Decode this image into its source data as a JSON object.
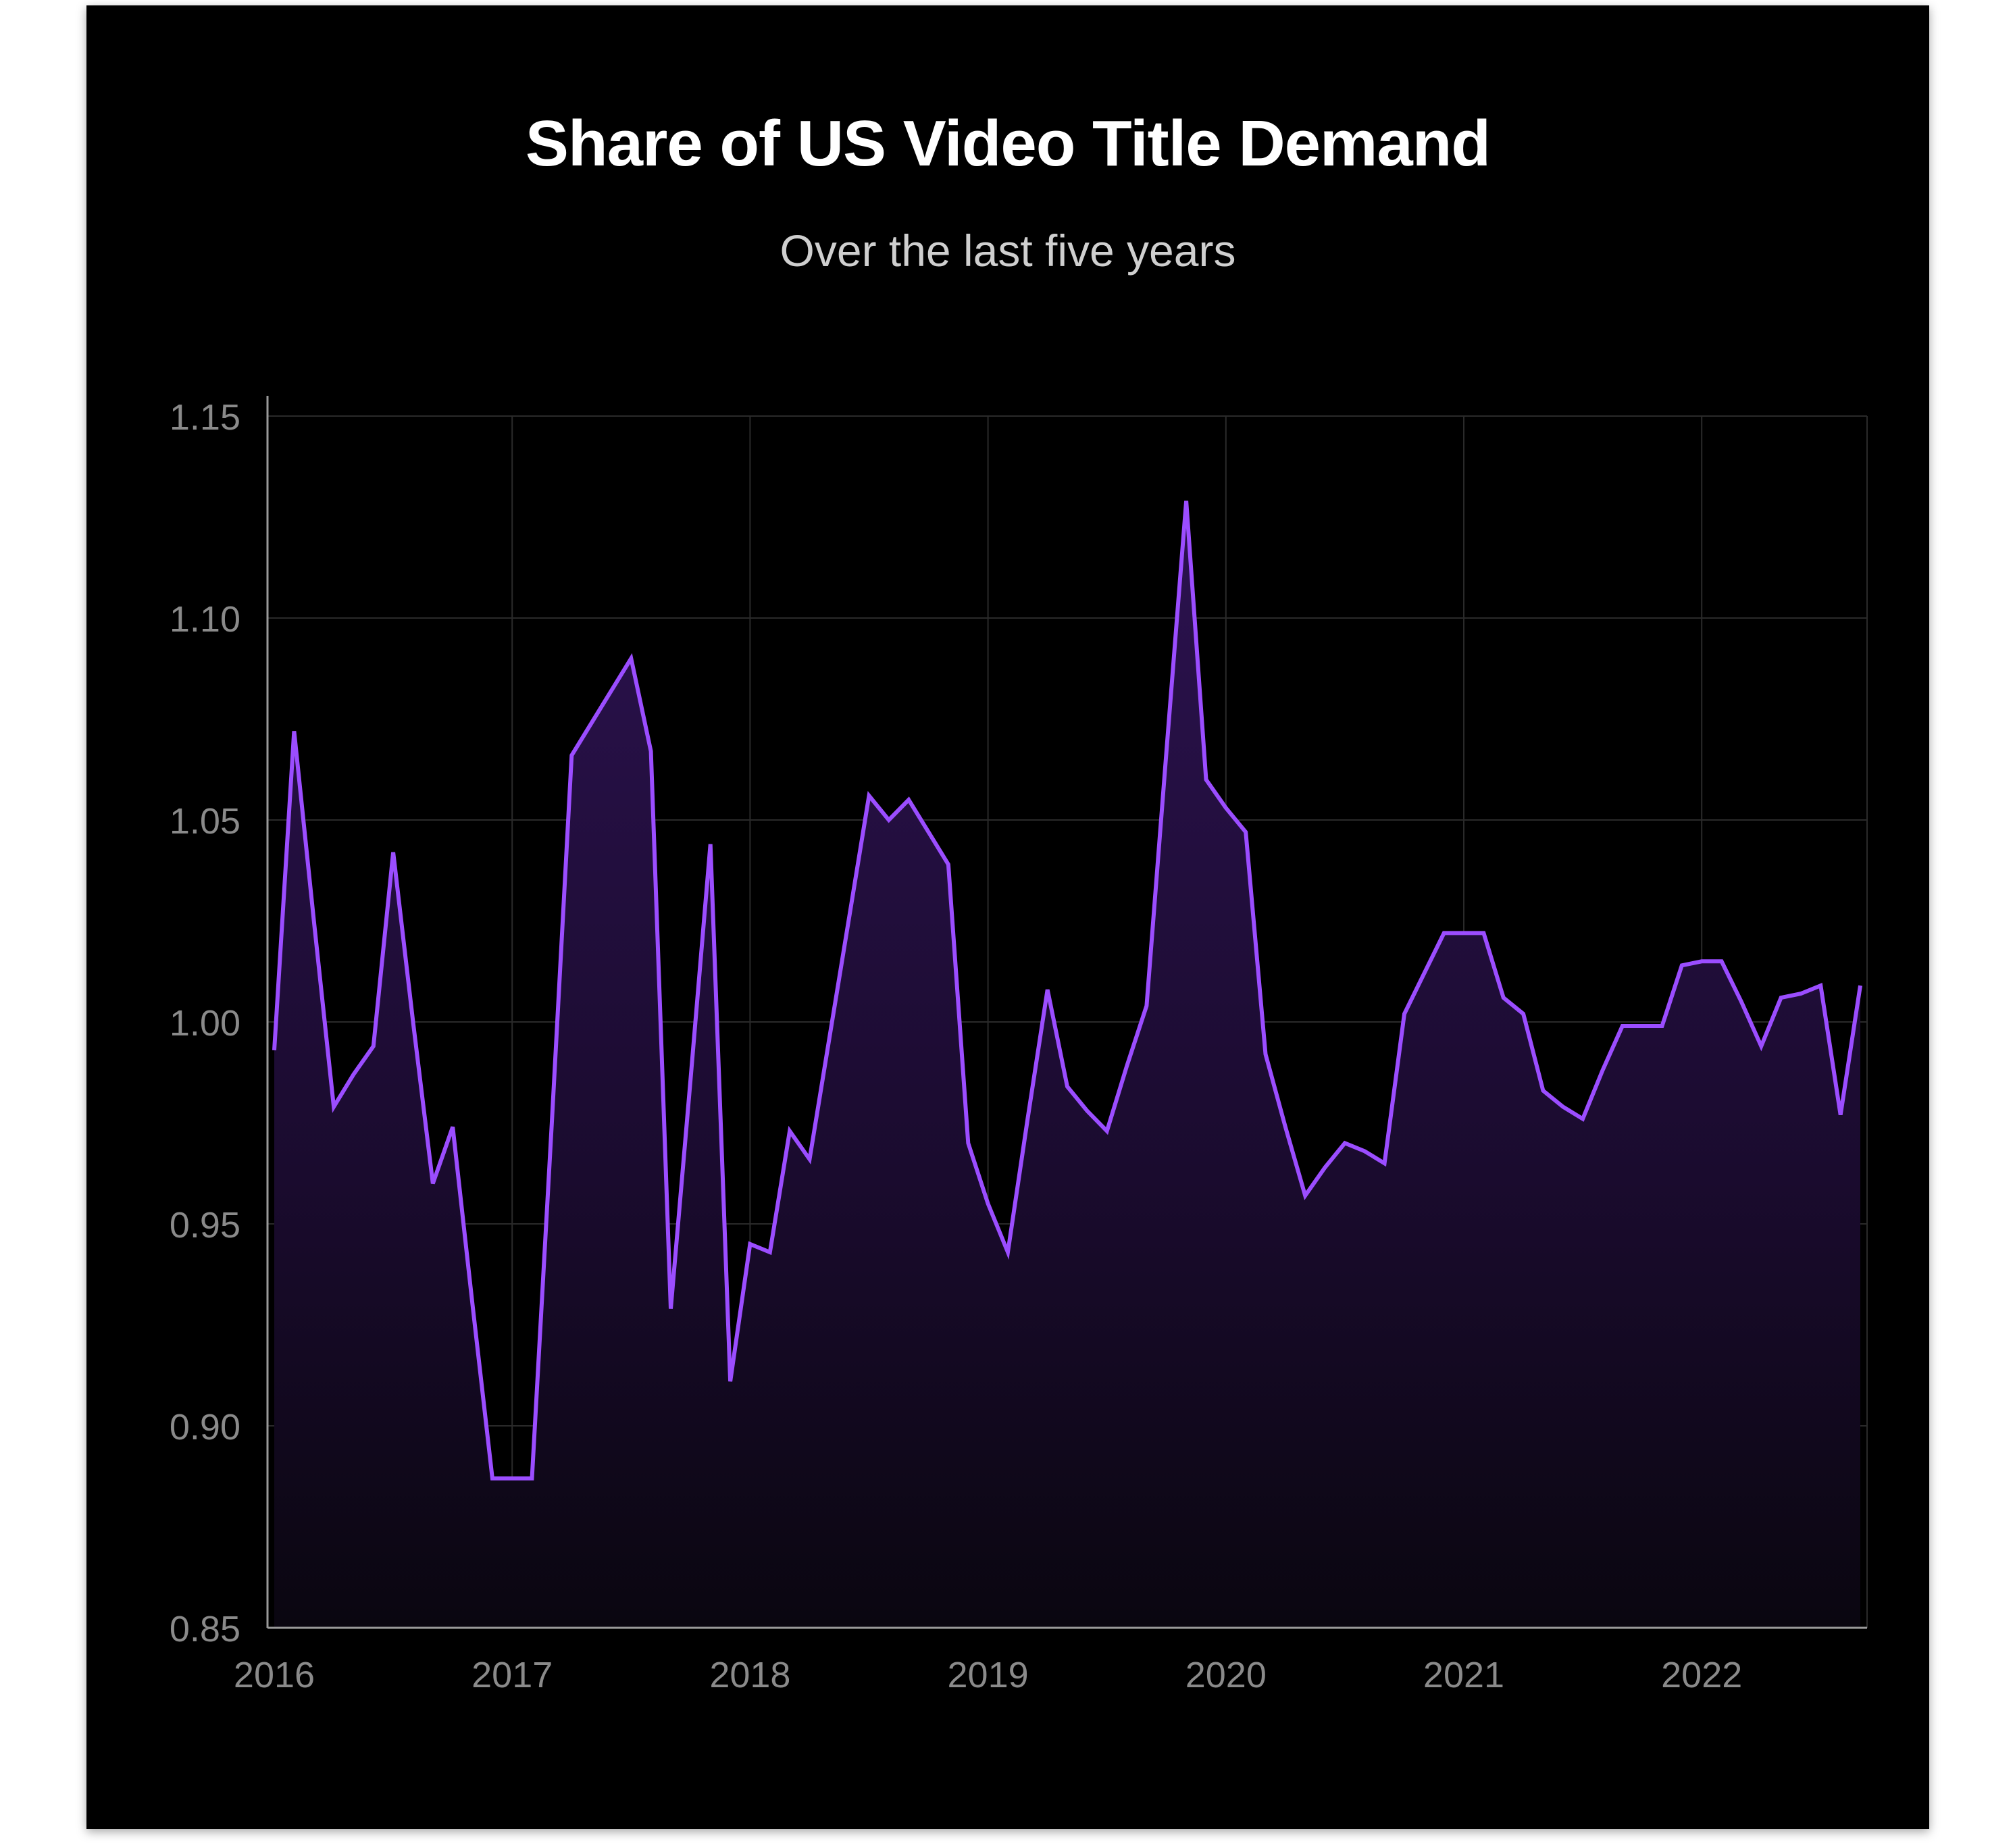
{
  "chart_data": {
    "type": "area",
    "title": "Share of US Video Title Demand",
    "subtitle": "Over the last five years",
    "xlabel": "",
    "ylabel": "",
    "ylim": [
      0.85,
      1.15
    ],
    "xlim": [
      "2016-01",
      "2022-09"
    ],
    "yticks": [
      "0.85",
      "0.90",
      "0.95",
      "1.00",
      "1.05",
      "1.10",
      "1.15"
    ],
    "xticks": [
      "2016",
      "2017",
      "2018",
      "2019",
      "2020",
      "2021",
      "2022"
    ],
    "grid": true,
    "legend": "none",
    "colors": {
      "line": "#9b4dff",
      "fill_top": "#2a1247",
      "background": "#000000",
      "grid": "#2a2a2a"
    },
    "series": [
      {
        "points": [
          [
            "2016-01",
            0.993
          ],
          [
            "2016-02",
            1.072
          ],
          [
            "2016-03",
            1.025
          ],
          [
            "2016-04",
            0.979
          ],
          [
            "2016-05",
            0.987
          ],
          [
            "2016-06",
            0.994
          ],
          [
            "2016-07",
            1.042
          ],
          [
            "2016-08",
            1.0
          ],
          [
            "2016-09",
            0.96
          ],
          [
            "2016-10",
            0.974
          ],
          [
            "2016-11",
            0.93
          ],
          [
            "2016-12",
            0.887
          ],
          [
            "2017-01",
            0.887
          ],
          [
            "2017-02",
            0.887
          ],
          [
            "2017-03",
            0.975
          ],
          [
            "2017-04",
            1.066
          ],
          [
            "2017-05",
            1.074
          ],
          [
            "2017-06",
            1.082
          ],
          [
            "2017-07",
            1.09
          ],
          [
            "2017-08",
            1.067
          ],
          [
            "2017-09",
            0.929
          ],
          [
            "2017-10",
            0.986
          ],
          [
            "2017-11",
            1.044
          ],
          [
            "2017-12",
            0.911
          ],
          [
            "2018-01",
            0.945
          ],
          [
            "2018-02",
            0.943
          ],
          [
            "2018-03",
            0.973
          ],
          [
            "2018-04",
            0.966
          ],
          [
            "2018-05",
            0.996
          ],
          [
            "2018-06",
            1.026
          ],
          [
            "2018-07",
            1.056
          ],
          [
            "2018-08",
            1.05
          ],
          [
            "2018-09",
            1.055
          ],
          [
            "2018-10",
            1.047
          ],
          [
            "2018-11",
            1.039
          ],
          [
            "2018-12",
            0.97
          ],
          [
            "2019-01",
            0.955
          ],
          [
            "2019-02",
            0.943
          ],
          [
            "2019-03",
            0.976
          ],
          [
            "2019-04",
            1.008
          ],
          [
            "2019-05",
            0.984
          ],
          [
            "2019-06",
            0.978
          ],
          [
            "2019-07",
            0.973
          ],
          [
            "2019-08",
            0.989
          ],
          [
            "2019-09",
            1.004
          ],
          [
            "2019-10",
            1.067
          ],
          [
            "2019-11",
            1.129
          ],
          [
            "2019-12",
            1.06
          ],
          [
            "2020-01",
            1.053
          ],
          [
            "2020-02",
            1.047
          ],
          [
            "2020-03",
            0.992
          ],
          [
            "2020-04",
            0.974
          ],
          [
            "2020-05",
            0.957
          ],
          [
            "2020-06",
            0.964
          ],
          [
            "2020-07",
            0.97
          ],
          [
            "2020-08",
            0.968
          ],
          [
            "2020-09",
            0.965
          ],
          [
            "2020-10",
            1.002
          ],
          [
            "2020-11",
            1.012
          ],
          [
            "2020-12",
            1.022
          ],
          [
            "2021-01",
            1.022
          ],
          [
            "2021-02",
            1.022
          ],
          [
            "2021-03",
            1.006
          ],
          [
            "2021-04",
            1.002
          ],
          [
            "2021-05",
            0.983
          ],
          [
            "2021-06",
            0.979
          ],
          [
            "2021-07",
            0.976
          ],
          [
            "2021-08",
            0.988
          ],
          [
            "2021-09",
            0.999
          ],
          [
            "2021-10",
            0.999
          ],
          [
            "2021-11",
            0.999
          ],
          [
            "2021-12",
            1.014
          ],
          [
            "2022-01",
            1.015
          ],
          [
            "2022-02",
            1.015
          ],
          [
            "2022-03",
            1.005
          ],
          [
            "2022-04",
            0.994
          ],
          [
            "2022-05",
            1.006
          ],
          [
            "2022-06",
            1.007
          ],
          [
            "2022-07",
            1.009
          ],
          [
            "2022-08",
            0.977
          ],
          [
            "2022-09",
            1.009
          ]
        ]
      }
    ]
  }
}
